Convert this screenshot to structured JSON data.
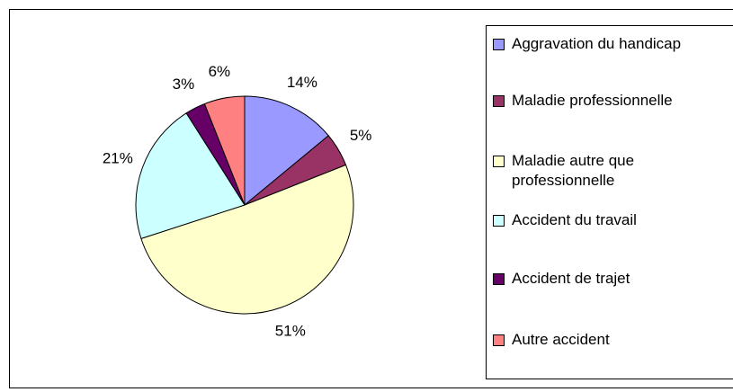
{
  "chart_data": {
    "type": "pie",
    "categories": [
      "Aggravation du handicap",
      "Maladie professionnelle",
      "Maladie autre que professionnelle",
      "Accident du travail",
      "Accident de trajet",
      "Autre accident"
    ],
    "values": [
      14,
      5,
      51,
      21,
      3,
      6
    ],
    "value_labels": [
      "14%",
      "5%",
      "51%",
      "21%",
      "3%",
      "6%"
    ],
    "colors": [
      "#9999ff",
      "#993366",
      "#ffffcc",
      "#ccffff",
      "#660066",
      "#ff8080"
    ],
    "legend": "right"
  }
}
